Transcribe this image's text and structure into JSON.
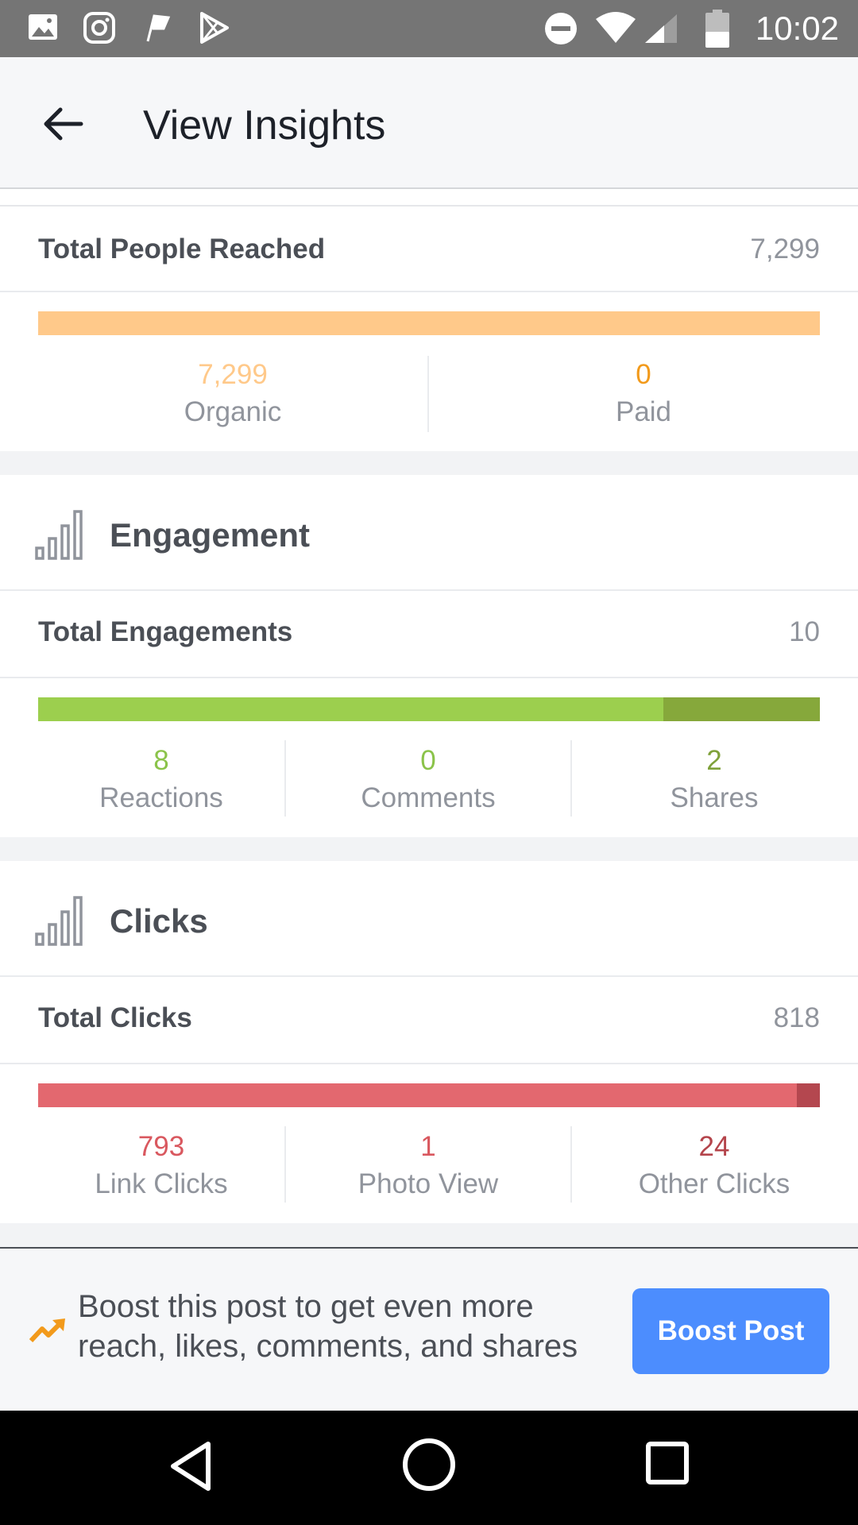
{
  "status_bar": {
    "time": "10:02",
    "left_icons": [
      "gallery-icon",
      "instagram-icon",
      "flag-icon",
      "play-store-icon"
    ],
    "right_icons": [
      "do-not-disturb-icon",
      "wifi-icon",
      "cell-signal-icon",
      "battery-icon"
    ]
  },
  "header": {
    "title": "View Insights",
    "back_icon": "back-arrow-icon"
  },
  "reach": {
    "total_label": "Total People Reached",
    "total_value": "7,299",
    "bar": [
      {
        "name": "Organic",
        "value": 7299,
        "color": "#ffc98a"
      },
      {
        "name": "Paid",
        "value": 0,
        "color": "#f29a1b"
      }
    ],
    "stats": [
      {
        "value": "7,299",
        "label": "Organic",
        "color": "#ffc98a"
      },
      {
        "value": "0",
        "label": "Paid",
        "color": "#f29a1b"
      }
    ]
  },
  "engagement": {
    "section_title": "Engagement",
    "icon": "bar-chart-icon",
    "total_label": "Total Engagements",
    "total_value": "10",
    "bar": [
      {
        "name": "Reactions",
        "value": 8,
        "color": "#9ccf4e"
      },
      {
        "name": "Comments",
        "value": 0,
        "color": "#9ccf4e"
      },
      {
        "name": "Shares",
        "value": 2,
        "color": "#86a83b"
      }
    ],
    "stats": [
      {
        "value": "8",
        "label": "Reactions",
        "color": "#8bc34a"
      },
      {
        "value": "0",
        "label": "Comments",
        "color": "#8bc34a"
      },
      {
        "value": "2",
        "label": "Shares",
        "color": "#7fa13a"
      }
    ]
  },
  "clicks": {
    "section_title": "Clicks",
    "icon": "bar-chart-icon",
    "total_label": "Total Clicks",
    "total_value": "818",
    "bar": [
      {
        "name": "Link Clicks",
        "value": 793,
        "color": "#e3686f"
      },
      {
        "name": "Photo View",
        "value": 1,
        "color": "#e3686f"
      },
      {
        "name": "Other Clicks",
        "value": 24,
        "color": "#b4474f"
      }
    ],
    "stats": [
      {
        "value": "793",
        "label": "Link Clicks",
        "color": "#d9585f"
      },
      {
        "value": "1",
        "label": "Photo View",
        "color": "#d9585f"
      },
      {
        "value": "24",
        "label": "Other Clicks",
        "color": "#b4444b"
      }
    ]
  },
  "boost": {
    "text": "Boost this post to get even more reach, likes, comments, and shares",
    "button_label": "Boost Post",
    "icon": "trending-up-icon",
    "button_color": "#4c8dfe"
  },
  "nav": {
    "icons": [
      "back-nav-icon",
      "home-nav-icon",
      "recents-nav-icon"
    ]
  }
}
